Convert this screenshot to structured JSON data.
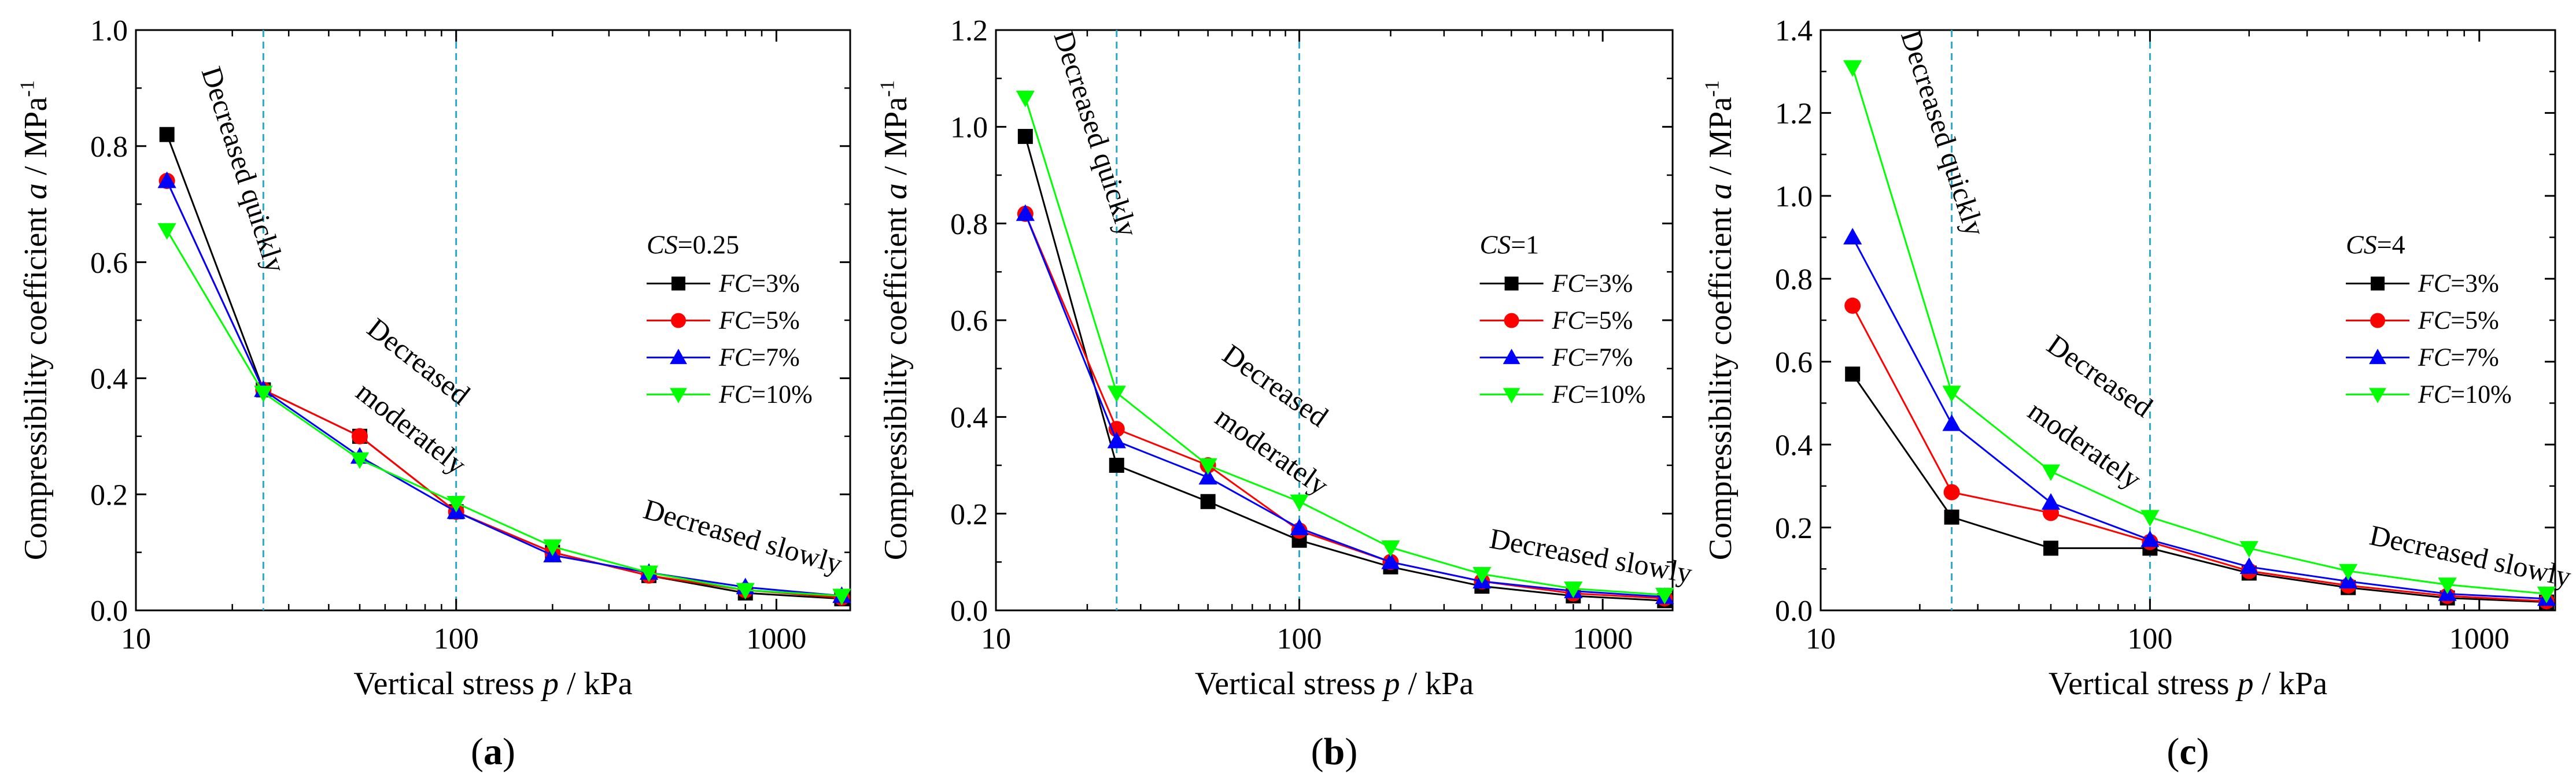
{
  "figure": {
    "panel_labels": [
      "(a)",
      "(b)",
      "(c)"
    ]
  },
  "chart_data": [
    {
      "type": "line",
      "panel": "(a)",
      "xlabel": "Vertical stress p / kPa",
      "ylabel": "Compressibility coefficient a / MPa-1",
      "xscale": "log",
      "xlim": [
        10,
        1700
      ],
      "ylim": [
        0,
        1.0
      ],
      "x_ticks": [
        10,
        100,
        1000
      ],
      "x_tick_labels": [
        "10",
        "100",
        "1000"
      ],
      "y_ticks": [
        0,
        0.2,
        0.4,
        0.6,
        0.8,
        1.0
      ],
      "y_tick_labels": [
        "0.0",
        "0.2",
        "0.4",
        "0.6",
        "0.8",
        "1.0"
      ],
      "vlines": [
        25,
        100
      ],
      "legend_title": "CS=0.25",
      "legend_position": "right",
      "annotations": [
        {
          "text": "Decreased quickly",
          "x": 16,
          "y": 0.93,
          "rotate": 72
        },
        {
          "text": "Decreased",
          "x": 52,
          "y": 0.48,
          "rotate": 38
        },
        {
          "text": "moderately",
          "x": 48,
          "y": 0.37,
          "rotate": 38
        },
        {
          "text": "Decreased slowly",
          "x": 380,
          "y": 0.16,
          "rotate": 16
        }
      ],
      "x": [
        12.5,
        25,
        50,
        100,
        200,
        400,
        800,
        1600
      ],
      "series": [
        {
          "name": "FC=3%",
          "color": "#000000",
          "marker": "square",
          "values": [
            0.82,
            0.38,
            0.3,
            0.17,
            0.1,
            0.06,
            0.03,
            0.02
          ]
        },
        {
          "name": "FC=5%",
          "color": "#ff0000",
          "marker": "circle",
          "values": [
            0.74,
            0.38,
            0.3,
            0.17,
            0.1,
            0.06,
            0.035,
            0.022
          ]
        },
        {
          "name": "FC=7%",
          "color": "#0000ff",
          "marker": "triangle-up",
          "values": [
            0.74,
            0.38,
            0.265,
            0.17,
            0.095,
            0.065,
            0.04,
            0.025
          ]
        },
        {
          "name": "FC=10%",
          "color": "#00ff00",
          "marker": "triangle-down",
          "values": [
            0.655,
            0.375,
            0.26,
            0.185,
            0.11,
            0.065,
            0.035,
            0.025
          ]
        }
      ]
    },
    {
      "type": "line",
      "panel": "(b)",
      "xlabel": "Vertical stress p / kPa",
      "ylabel": "Compressibility coefficient a / MPa-1",
      "xscale": "log",
      "xlim": [
        10,
        1700
      ],
      "ylim": [
        0,
        1.2
      ],
      "x_ticks": [
        10,
        100,
        1000
      ],
      "x_tick_labels": [
        "10",
        "100",
        "1000"
      ],
      "y_ticks": [
        0,
        0.2,
        0.4,
        0.6,
        0.8,
        1.0,
        1.2
      ],
      "y_tick_labels": [
        "0.0",
        "0.2",
        "0.4",
        "0.6",
        "0.8",
        "1.0",
        "1.2"
      ],
      "vlines": [
        25,
        100
      ],
      "legend_title": "CS=1",
      "legend_position": "right",
      "annotations": [
        {
          "text": "Decreased quickly",
          "x": 15.5,
          "y": 1.19,
          "rotate": 72
        },
        {
          "text": "Decreased",
          "x": 55,
          "y": 0.52,
          "rotate": 35
        },
        {
          "text": "moderately",
          "x": 52,
          "y": 0.39,
          "rotate": 35
        },
        {
          "text": "Decreased slowly",
          "x": 420,
          "y": 0.13,
          "rotate": 10
        }
      ],
      "x": [
        12.5,
        25,
        50,
        100,
        200,
        400,
        800,
        1600
      ],
      "series": [
        {
          "name": "FC=3%",
          "color": "#000000",
          "marker": "square",
          "values": [
            0.98,
            0.3,
            0.225,
            0.145,
            0.09,
            0.05,
            0.03,
            0.02
          ]
        },
        {
          "name": "FC=5%",
          "color": "#ff0000",
          "marker": "circle",
          "values": [
            0.82,
            0.375,
            0.3,
            0.165,
            0.1,
            0.06,
            0.035,
            0.025
          ]
        },
        {
          "name": "FC=7%",
          "color": "#0000ff",
          "marker": "triangle-up",
          "values": [
            0.82,
            0.35,
            0.275,
            0.17,
            0.1,
            0.06,
            0.04,
            0.028
          ]
        },
        {
          "name": "FC=10%",
          "color": "#00ff00",
          "marker": "triangle-down",
          "values": [
            1.06,
            0.45,
            0.3,
            0.225,
            0.13,
            0.075,
            0.045,
            0.032
          ]
        }
      ]
    },
    {
      "type": "line",
      "panel": "(c)",
      "xlabel": "Vertical stress p / kPa",
      "ylabel": "Compressibility coefficient a / MPa-1",
      "xscale": "log",
      "xlim": [
        10,
        1700
      ],
      "ylim": [
        0,
        1.4
      ],
      "x_ticks": [
        10,
        100,
        1000
      ],
      "x_tick_labels": [
        "10",
        "100",
        "1000"
      ],
      "y_ticks": [
        0,
        0.2,
        0.4,
        0.6,
        0.8,
        1.0,
        1.2,
        1.4
      ],
      "y_tick_labels": [
        "0.0",
        "0.2",
        "0.4",
        "0.6",
        "0.8",
        "1.0",
        "1.2",
        "1.4"
      ],
      "vlines": [
        25,
        100
      ],
      "legend_title": "CS=4",
      "legend_position": "right",
      "annotations": [
        {
          "text": "Decreased quickly",
          "x": 17.5,
          "y": 1.39,
          "rotate": 72
        },
        {
          "text": "Decreased",
          "x": 48,
          "y": 0.63,
          "rotate": 35
        },
        {
          "text": "moderately",
          "x": 42,
          "y": 0.47,
          "rotate": 35
        },
        {
          "text": "Decreased slowly",
          "x": 460,
          "y": 0.16,
          "rotate": 12
        }
      ],
      "x": [
        12.5,
        25,
        50,
        100,
        200,
        400,
        800,
        1600
      ],
      "series": [
        {
          "name": "FC=3%",
          "color": "#000000",
          "marker": "square",
          "values": [
            0.57,
            0.225,
            0.15,
            0.15,
            0.09,
            0.055,
            0.03,
            0.02
          ]
        },
        {
          "name": "FC=5%",
          "color": "#ff0000",
          "marker": "circle",
          "values": [
            0.735,
            0.285,
            0.235,
            0.165,
            0.095,
            0.06,
            0.035,
            0.022
          ]
        },
        {
          "name": "FC=7%",
          "color": "#0000ff",
          "marker": "triangle-up",
          "values": [
            0.9,
            0.45,
            0.26,
            0.17,
            0.105,
            0.07,
            0.04,
            0.028
          ]
        },
        {
          "name": "FC=10%",
          "color": "#00ff00",
          "marker": "triangle-down",
          "values": [
            1.31,
            0.525,
            0.335,
            0.225,
            0.15,
            0.095,
            0.062,
            0.04
          ]
        }
      ]
    }
  ]
}
